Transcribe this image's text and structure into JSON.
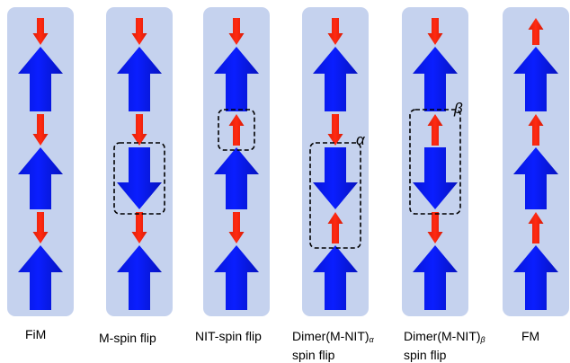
{
  "colors": {
    "panel": "#c5d2ee",
    "large_arrow": "#0a1eff",
    "small_arrow": "#ff2a12",
    "box_outline": "#000000"
  },
  "columns": [
    {
      "id": "fim",
      "label": "FiM",
      "sub": "",
      "label2": "",
      "arrows": [
        "small-down",
        "big-up",
        "small-down",
        "big-up",
        "small-down",
        "big-up"
      ]
    },
    {
      "id": "m-spin-flip",
      "label": "M-spin flip",
      "sub": "",
      "label2": "",
      "arrows": [
        "small-down",
        "big-up",
        "small-down",
        "big-down",
        "small-down",
        "big-up"
      ],
      "highlight": [
        3,
        3
      ]
    },
    {
      "id": "nit-spin-flip",
      "label": "NIT-spin flip",
      "sub": "",
      "label2": "",
      "arrows": [
        "small-down",
        "big-up",
        "small-up",
        "big-up",
        "small-down",
        "big-up"
      ],
      "highlight": [
        2,
        2
      ]
    },
    {
      "id": "dimer-alpha",
      "label": "Dimer(M-NIT)",
      "sub": "α",
      "label2": "spin flip",
      "arrows": [
        "small-down",
        "big-up",
        "small-down",
        "big-down",
        "small-up",
        "big-up"
      ],
      "highlight": [
        3,
        4
      ],
      "tag": "α"
    },
    {
      "id": "dimer-beta",
      "label": "Dimer(M-NIT)",
      "sub": "β",
      "label2": "spin flip",
      "arrows": [
        "small-down",
        "big-up",
        "small-up",
        "big-down",
        "small-down",
        "big-up"
      ],
      "highlight": [
        2,
        3
      ],
      "tag": "β"
    },
    {
      "id": "fm",
      "label": "FM",
      "sub": "",
      "label2": "",
      "arrows": [
        "small-up",
        "big-up",
        "small-up",
        "big-up",
        "small-up",
        "big-up"
      ]
    }
  ]
}
